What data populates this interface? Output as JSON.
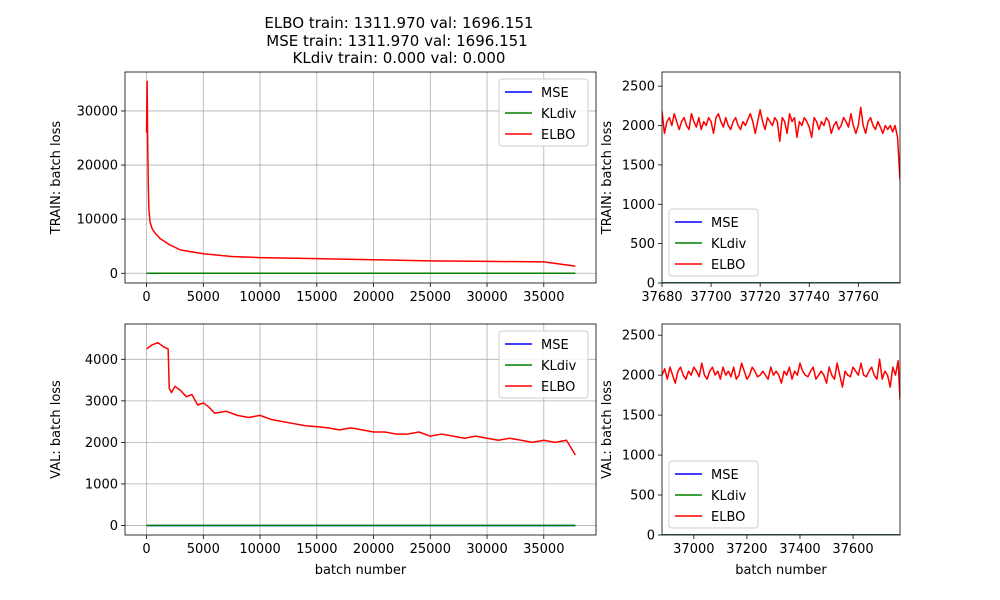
{
  "title_lines": [
    "ELBO train: 1311.970  val: 1696.151",
    "MSE train: 1311.970  val: 1696.151",
    "KLdiv train: 0.000  val: 0.000"
  ],
  "colors": {
    "MSE": "#0000ff",
    "KLdiv": "#008000",
    "ELBO": "#ff0000",
    "grid": "#b0b0b0"
  },
  "chart_data": [
    {
      "id": "train-full",
      "type": "line",
      "ylabel": "TRAIN: batch loss",
      "xlabel": "",
      "xlim": [
        -1900,
        39600
      ],
      "ylim": [
        -1800,
        37200
      ],
      "xticks": [
        0,
        5000,
        10000,
        15000,
        20000,
        25000,
        30000,
        35000
      ],
      "yticks": [
        0,
        10000,
        20000,
        30000
      ],
      "grid": true,
      "legend": "top-right",
      "series": [
        {
          "name": "MSE",
          "x": [
            0,
            37780
          ],
          "y": [
            0,
            0
          ]
        },
        {
          "name": "KLdiv",
          "x": [
            0,
            37780
          ],
          "y": [
            0,
            0
          ]
        },
        {
          "name": "ELBO",
          "x": [
            0,
            50,
            100,
            150,
            200,
            300,
            500,
            800,
            1200,
            2000,
            3000,
            5000,
            7500,
            10000,
            15000,
            20000,
            25000,
            30000,
            35000,
            37780
          ],
          "y": [
            26000,
            35500,
            24000,
            16500,
            12000,
            9500,
            8200,
            7300,
            6400,
            5300,
            4300,
            3600,
            3100,
            2900,
            2700,
            2500,
            2300,
            2200,
            2100,
            1312
          ]
        }
      ]
    },
    {
      "id": "train-zoom",
      "type": "line",
      "ylabel": "TRAIN: batch loss",
      "xlabel": "",
      "xlim": [
        37680,
        37777
      ],
      "ylim": [
        0,
        2680
      ],
      "xticks": [
        37680,
        37700,
        37720,
        37740,
        37760
      ],
      "yticks": [
        0,
        500,
        1000,
        1500,
        2000,
        2500
      ],
      "grid": false,
      "legend": "bottom-left",
      "series": [
        {
          "name": "MSE",
          "x": [
            37680,
            37777
          ],
          "y": [
            0,
            0
          ]
        },
        {
          "name": "KLdiv",
          "x": [
            37680,
            37777
          ],
          "y": [
            0,
            0
          ]
        },
        {
          "name": "ELBO",
          "x": [
            37680,
            37681,
            37682,
            37683,
            37684,
            37685,
            37686,
            37687,
            37688,
            37689,
            37690,
            37691,
            37692,
            37693,
            37694,
            37695,
            37696,
            37697,
            37698,
            37699,
            37700,
            37701,
            37702,
            37703,
            37704,
            37705,
            37706,
            37707,
            37708,
            37709,
            37710,
            37711,
            37712,
            37713,
            37714,
            37715,
            37716,
            37717,
            37718,
            37719,
            37720,
            37721,
            37722,
            37723,
            37724,
            37725,
            37726,
            37727,
            37728,
            37729,
            37730,
            37731,
            37732,
            37733,
            37734,
            37735,
            37736,
            37737,
            37738,
            37739,
            37740,
            37741,
            37742,
            37743,
            37744,
            37745,
            37746,
            37747,
            37748,
            37749,
            37750,
            37751,
            37752,
            37753,
            37754,
            37755,
            37756,
            37757,
            37758,
            37759,
            37760,
            37761,
            37762,
            37763,
            37764,
            37765,
            37766,
            37767,
            37768,
            37769,
            37770,
            37771,
            37772,
            37773,
            37774,
            37775,
            37776,
            37777
          ],
          "y": [
            2180,
            1900,
            2050,
            2100,
            2000,
            2150,
            2050,
            1950,
            2050,
            2100,
            2000,
            1950,
            2150,
            2050,
            1980,
            2100,
            1950,
            2050,
            2000,
            2100,
            2050,
            1900,
            2100,
            2150,
            2050,
            1980,
            2100,
            2000,
            1950,
            2050,
            2100,
            2000,
            1950,
            2050,
            2000,
            2080,
            2150,
            2050,
            1900,
            2050,
            2200,
            2050,
            1950,
            2100,
            2050,
            2000,
            2100,
            2050,
            1800,
            2100,
            2050,
            1900,
            2150,
            2050,
            2100,
            1850,
            2050,
            2000,
            2100,
            2050,
            1980,
            1850,
            2100,
            2050,
            1950,
            2050,
            2000,
            2100,
            2050,
            1900,
            2000,
            2050,
            1950,
            2000,
            2100,
            2050,
            1980,
            2150,
            2000,
            1900,
            2000,
            2230,
            2000,
            1900,
            2050,
            2100,
            2000,
            1950,
            2050,
            1980,
            1900,
            2000,
            1950,
            2000,
            1920,
            2000,
            1850,
            1312
          ]
        }
      ]
    },
    {
      "id": "val-full",
      "type": "line",
      "ylabel": "VAL: batch loss",
      "xlabel": "batch number",
      "xlim": [
        -1900,
        39600
      ],
      "ylim": [
        -230,
        4850
      ],
      "xticks": [
        0,
        5000,
        10000,
        15000,
        20000,
        25000,
        30000,
        35000
      ],
      "yticks": [
        0,
        1000,
        2000,
        3000,
        4000
      ],
      "grid": true,
      "legend": "top-right",
      "series": [
        {
          "name": "MSE",
          "x": [
            0,
            37780
          ],
          "y": [
            0,
            0
          ]
        },
        {
          "name": "KLdiv",
          "x": [
            0,
            37780
          ],
          "y": [
            0,
            0
          ]
        },
        {
          "name": "ELBO",
          "x": [
            0,
            500,
            1000,
            1500,
            1900,
            2000,
            2200,
            2500,
            3000,
            3500,
            4000,
            4500,
            5000,
            5500,
            6000,
            7000,
            8000,
            9000,
            10000,
            11000,
            12000,
            13000,
            14000,
            15000,
            16000,
            17000,
            18000,
            19000,
            20000,
            21000,
            22000,
            23000,
            24000,
            25000,
            26000,
            27000,
            28000,
            29000,
            30000,
            31000,
            32000,
            33000,
            34000,
            35000,
            36000,
            37000,
            37780
          ],
          "y": [
            4250,
            4350,
            4400,
            4300,
            4250,
            3300,
            3200,
            3350,
            3250,
            3100,
            3150,
            2900,
            2950,
            2850,
            2700,
            2750,
            2650,
            2600,
            2650,
            2550,
            2500,
            2450,
            2400,
            2380,
            2350,
            2300,
            2350,
            2300,
            2250,
            2250,
            2200,
            2200,
            2250,
            2150,
            2200,
            2150,
            2100,
            2150,
            2100,
            2050,
            2100,
            2050,
            2000,
            2050,
            2000,
            2050,
            1696
          ]
        }
      ]
    },
    {
      "id": "val-zoom",
      "type": "line",
      "ylabel": "VAL: batch loss",
      "xlabel": "batch number",
      "xlim": [
        36880,
        37777
      ],
      "ylim": [
        0,
        2640
      ],
      "xticks": [
        37000,
        37200,
        37400,
        37600
      ],
      "yticks": [
        0,
        500,
        1000,
        1500,
        2000,
        2500
      ],
      "grid": false,
      "legend": "bottom-left",
      "series": [
        {
          "name": "MSE",
          "x": [
            36880,
            37777
          ],
          "y": [
            0,
            0
          ]
        },
        {
          "name": "KLdiv",
          "x": [
            36880,
            37777
          ],
          "y": [
            0,
            0
          ]
        },
        {
          "name": "ELBO",
          "x": [
            36880,
            36890,
            36900,
            36910,
            36920,
            36930,
            36940,
            36950,
            36960,
            36970,
            36980,
            36990,
            37000,
            37010,
            37020,
            37030,
            37040,
            37050,
            37060,
            37070,
            37080,
            37090,
            37100,
            37110,
            37120,
            37130,
            37140,
            37150,
            37160,
            37170,
            37180,
            37190,
            37200,
            37210,
            37220,
            37230,
            37240,
            37250,
            37260,
            37270,
            37280,
            37290,
            37300,
            37310,
            37320,
            37330,
            37340,
            37350,
            37360,
            37370,
            37380,
            37390,
            37400,
            37410,
            37420,
            37430,
            37440,
            37450,
            37460,
            37470,
            37480,
            37490,
            37500,
            37510,
            37520,
            37530,
            37540,
            37550,
            37560,
            37570,
            37580,
            37590,
            37600,
            37610,
            37620,
            37630,
            37640,
            37650,
            37660,
            37670,
            37680,
            37690,
            37700,
            37710,
            37720,
            37730,
            37740,
            37750,
            37760,
            37770,
            37777
          ],
          "y": [
            2000,
            2080,
            1950,
            2100,
            2000,
            1900,
            2050,
            2100,
            2000,
            1950,
            2050,
            2000,
            2100,
            2050,
            1980,
            2150,
            2000,
            1950,
            2050,
            2100,
            2000,
            2050,
            1950,
            2100,
            2000,
            2050,
            1980,
            2100,
            1950,
            2000,
            2150,
            2050,
            1950,
            2000,
            2100,
            2050,
            1980,
            2000,
            2050,
            2000,
            1950,
            2100,
            2000,
            2050,
            2000,
            1900,
            2050,
            2000,
            2100,
            1950,
            2050,
            2000,
            2150,
            2050,
            2000,
            1980,
            2050,
            2100,
            1950,
            2000,
            2050,
            2000,
            1900,
            2100,
            2000,
            1950,
            2150,
            2000,
            1850,
            2050,
            2000,
            1980,
            2100,
            2050,
            2000,
            2150,
            2000,
            1980,
            2050,
            2100,
            2000,
            1950,
            2200,
            1950,
            2050,
            2000,
            1850,
            2100,
            2000,
            2180,
            1696
          ]
        }
      ]
    }
  ]
}
